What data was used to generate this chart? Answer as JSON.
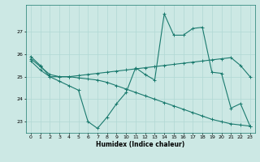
{
  "xlabel": "Humidex (Indice chaleur)",
  "bg_color": "#cce8e4",
  "line_color": "#1a7a6e",
  "grid_color": "#b0d8d4",
  "ylim": [
    22.5,
    28.2
  ],
  "xlim": [
    -0.5,
    23.5
  ],
  "yticks": [
    23,
    24,
    25,
    26,
    27
  ],
  "xticks": [
    0,
    1,
    2,
    3,
    4,
    5,
    6,
    7,
    8,
    9,
    10,
    11,
    12,
    13,
    14,
    15,
    16,
    17,
    18,
    19,
    20,
    21,
    22,
    23
  ],
  "line1": [
    25.9,
    25.5,
    25.0,
    24.8,
    24.6,
    24.4,
    23.0,
    22.7,
    23.2,
    23.8,
    24.3,
    25.4,
    25.1,
    24.85,
    27.8,
    26.85,
    26.85,
    27.15,
    27.2,
    25.2,
    25.15,
    23.6,
    23.8,
    22.8
  ],
  "line2": [
    25.8,
    25.45,
    25.1,
    25.0,
    25.0,
    25.05,
    25.1,
    25.15,
    25.2,
    25.25,
    25.3,
    25.35,
    25.4,
    25.45,
    25.5,
    25.55,
    25.6,
    25.65,
    25.7,
    25.75,
    25.8,
    25.85,
    25.5,
    25.0
  ],
  "line3": [
    25.7,
    25.3,
    25.0,
    25.0,
    25.0,
    24.95,
    24.9,
    24.85,
    24.75,
    24.6,
    24.45,
    24.3,
    24.15,
    24.0,
    23.85,
    23.7,
    23.55,
    23.4,
    23.25,
    23.1,
    23.0,
    22.9,
    22.85,
    22.8
  ]
}
